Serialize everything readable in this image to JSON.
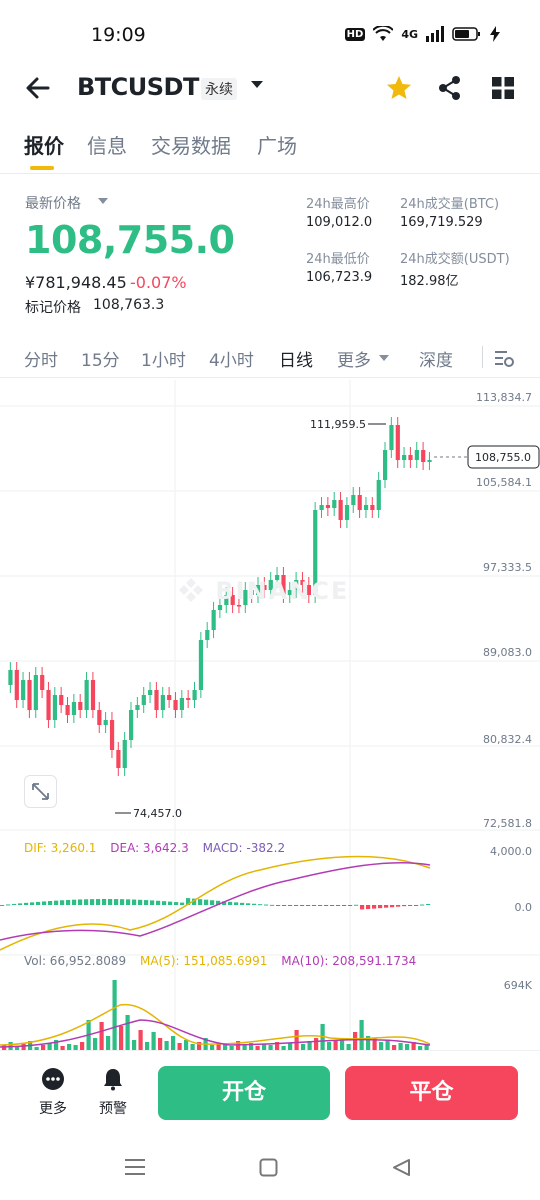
{
  "status_bar": {
    "time": "19:09",
    "hd": "HD",
    "network": "4G"
  },
  "header": {
    "symbol": "BTCUSDT",
    "contract_type": "永续"
  },
  "tabs": [
    {
      "label": "报价",
      "active": true
    },
    {
      "label": "信息",
      "active": false
    },
    {
      "label": "交易数据",
      "active": false
    },
    {
      "label": "广场",
      "active": false
    }
  ],
  "ticker": {
    "price_label": "最新价格",
    "last_price": "108,755.0",
    "cny_price": "¥781,948.45",
    "change_pct": "-0.07%",
    "mark_label": "标记价格",
    "mark_price": "108,763.3",
    "high_label": "24h最高价",
    "high": "109,012.0",
    "low_label": "24h最低价",
    "low": "106,723.9",
    "vol_btc_label": "24h成交量(BTC)",
    "vol_btc": "169,719.529",
    "vol_usdt_label": "24h成交额(USDT)",
    "vol_usdt": "182.98亿"
  },
  "intervals": [
    {
      "label": "分时",
      "active": false
    },
    {
      "label": "15分",
      "active": false
    },
    {
      "label": "1小时",
      "active": false
    },
    {
      "label": "4小时",
      "active": false
    },
    {
      "label": "日线",
      "active": true
    },
    {
      "label": "更多",
      "active": false
    },
    {
      "label": "深度",
      "active": false
    }
  ],
  "chart": {
    "watermark": "BINANCE",
    "y_ticks": [
      "113,834.7",
      "105,584.1",
      "97,333.5",
      "89,083.0",
      "80,832.4",
      "72,581.8"
    ],
    "high_marker": "111,959.5",
    "low_marker": "74,457.0",
    "current_price_tag": "108,755.0",
    "colors": {
      "up": "#2ebd85",
      "down": "#f6465d",
      "accent": "#f0b90b"
    }
  },
  "macd": {
    "dif": "DIF: 3,260.1",
    "dea": "DEA: 3,642.3",
    "macd": "MACD: -382.2",
    "axis_top": "4,000.0",
    "axis_zero": "0.0"
  },
  "volume": {
    "vol": "Vol: 66,952.8089",
    "ma5": "MA(5): 151,085.6991",
    "ma10": "MA(10): 208,591.1734",
    "axis_top": "694K"
  },
  "bottom_bar": {
    "more": "更多",
    "alert": "预警",
    "open": "开仓",
    "close": "平仓"
  }
}
